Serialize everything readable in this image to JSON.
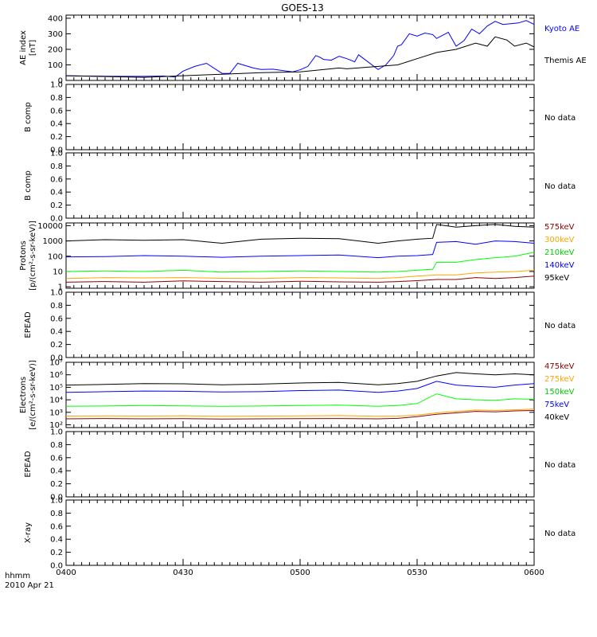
{
  "title": "GOES-13",
  "footer": {
    "time_label": "hhmm",
    "date_label": "2010 Apr 21"
  },
  "x_ticks": [
    "0400",
    "0430",
    "0500",
    "0530",
    "0600"
  ],
  "panels": [
    {
      "ylabel": [
        "AE index",
        "[nT]"
      ],
      "type": "line",
      "yscale": "linear",
      "ylim": [
        0,
        420
      ],
      "ytick_values": [
        0,
        100,
        200,
        300,
        400
      ],
      "ytick_labels": [
        "0",
        "100",
        "200",
        "300",
        "400"
      ],
      "series": [
        {
          "name": "Kyoto AE",
          "color": "#0000ff",
          "x": [
            0,
            5,
            10,
            15,
            20,
            25,
            28,
            30,
            33,
            36,
            40,
            42,
            44,
            48,
            50,
            53,
            58,
            60,
            62,
            64,
            65,
            66,
            68,
            70,
            72,
            74,
            75,
            80,
            82,
            84,
            85,
            86,
            88,
            90,
            92,
            94,
            95,
            98,
            100,
            102,
            104,
            106,
            108,
            110,
            112,
            114,
            116,
            118,
            120
          ],
          "y": [
            30,
            28,
            27,
            26,
            26,
            28,
            22,
            60,
            90,
            110,
            45,
            45,
            110,
            80,
            70,
            72,
            55,
            68,
            90,
            160,
            150,
            135,
            130,
            155,
            140,
            120,
            165,
            70,
            100,
            160,
            220,
            230,
            300,
            285,
            305,
            295,
            270,
            310,
            220,
            255,
            330,
            300,
            350,
            380,
            360,
            365,
            370,
            385,
            360
          ]
        },
        {
          "name": "Themis AE",
          "color": "#000000",
          "x": [
            0,
            10,
            20,
            30,
            40,
            50,
            60,
            70,
            72,
            80,
            85,
            90,
            95,
            100,
            105,
            108,
            110,
            113,
            115,
            118,
            120
          ],
          "y": [
            30,
            25,
            20,
            30,
            40,
            50,
            55,
            80,
            75,
            90,
            100,
            140,
            180,
            200,
            240,
            220,
            280,
            260,
            220,
            240,
            215
          ]
        }
      ],
      "legend": [
        {
          "label": "Kyoto AE",
          "color": "#0000ff"
        },
        {
          "label": "Themis AE",
          "color": "#000000"
        }
      ]
    },
    {
      "ylabel": [
        "B comp"
      ],
      "type": "empty",
      "yscale": "linear",
      "ylim": [
        0,
        1
      ],
      "ytick_values": [
        0,
        0.2,
        0.4,
        0.6,
        0.8,
        1.0
      ],
      "ytick_labels": [
        "0.0",
        "0.2",
        "0.4",
        "0.6",
        "0.8",
        "1.0"
      ],
      "series": [],
      "legend": [],
      "note": "No data"
    },
    {
      "ylabel": [
        "B comp"
      ],
      "type": "empty",
      "yscale": "linear",
      "ylim": [
        0,
        1
      ],
      "ytick_values": [
        0,
        0.2,
        0.4,
        0.6,
        0.8,
        1.0
      ],
      "ytick_labels": [
        "0.0",
        "0.2",
        "0.4",
        "0.6",
        "0.8",
        "1.0"
      ],
      "series": [],
      "legend": [],
      "note": "No data"
    },
    {
      "ylabel": [
        "Protons",
        "[p/(cm²-s-sr-keV)]"
      ],
      "type": "line",
      "yscale": "log",
      "ylim": [
        0.8,
        15000
      ],
      "ytick_values": [
        1,
        10,
        100,
        1000,
        10000
      ],
      "ytick_labels": [
        "1",
        "10",
        "100",
        "1000",
        "10000"
      ],
      "series": [
        {
          "name": "575keV",
          "color": "#8b0000",
          "x": [
            0,
            10,
            20,
            30,
            40,
            50,
            60,
            70,
            80,
            85,
            90,
            95,
            100,
            105,
            110,
            115,
            120
          ],
          "y": [
            2,
            2.2,
            2,
            2.4,
            2.2,
            2,
            2.3,
            2.1,
            2,
            2.2,
            2.5,
            3,
            3,
            4,
            3.5,
            4,
            5
          ]
        },
        {
          "name": "300keV",
          "color": "#ffa500",
          "x": [
            0,
            10,
            20,
            30,
            40,
            50,
            60,
            70,
            80,
            85,
            90,
            95,
            100,
            105,
            110,
            115,
            120
          ],
          "y": [
            3.5,
            4,
            3.8,
            4,
            3.6,
            3.5,
            4,
            3.8,
            3.5,
            4,
            5,
            6,
            6,
            8,
            9,
            10,
            12
          ]
        },
        {
          "name": "210keV",
          "color": "#00ff00",
          "x": [
            0,
            10,
            20,
            30,
            40,
            50,
            60,
            70,
            80,
            85,
            90,
            94,
            95,
            100,
            105,
            110,
            115,
            120
          ],
          "y": [
            10,
            11,
            10,
            12,
            9,
            10,
            11,
            10,
            9,
            10,
            12,
            14,
            40,
            40,
            60,
            80,
            100,
            180
          ]
        },
        {
          "name": "140keV",
          "color": "#0000ff",
          "x": [
            0,
            10,
            20,
            30,
            40,
            50,
            60,
            70,
            80,
            85,
            90,
            94,
            95,
            100,
            105,
            110,
            115,
            120
          ],
          "y": [
            90,
            95,
            110,
            100,
            85,
            100,
            110,
            120,
            80,
            100,
            110,
            130,
            800,
            900,
            600,
            1000,
            900,
            700
          ]
        },
        {
          "name": "95keV",
          "color": "#000000",
          "x": [
            0,
            10,
            20,
            30,
            40,
            50,
            60,
            70,
            80,
            85,
            90,
            94,
            95,
            100,
            105,
            110,
            115,
            120
          ],
          "y": [
            1000,
            1200,
            1100,
            1200,
            700,
            1300,
            1500,
            1400,
            700,
            1000,
            1300,
            1500,
            12000,
            8000,
            10000,
            12000,
            9000,
            8000
          ]
        }
      ],
      "legend": [
        {
          "label": "575keV",
          "color": "#8b0000"
        },
        {
          "label": "300keV",
          "color": "#ffa500"
        },
        {
          "label": "210keV",
          "color": "#00cc00"
        },
        {
          "label": "140keV",
          "color": "#0000ff"
        },
        {
          "label": "95keV",
          "color": "#000000"
        }
      ]
    },
    {
      "ylabel": [
        "EPEAD"
      ],
      "type": "empty",
      "yscale": "linear",
      "ylim": [
        0,
        1
      ],
      "ytick_values": [
        0,
        0.2,
        0.4,
        0.6,
        0.8,
        1.0
      ],
      "ytick_labels": [
        "0.0",
        "0.2",
        "0.4",
        "0.6",
        "0.8",
        "1.0"
      ],
      "series": [],
      "legend": [],
      "note": "No data"
    },
    {
      "ylabel": [
        "Electrons",
        "[e/(cm²-s-sr-keV)]"
      ],
      "type": "line",
      "yscale": "log",
      "ylim": [
        60,
        10000000
      ],
      "ytick_values": [
        100,
        1000,
        10000,
        100000,
        1000000,
        10000000
      ],
      "ytick_labels": [
        "10²",
        "10³",
        "10⁴",
        "10⁵",
        "10⁶",
        "10⁷"
      ],
      "series": [
        {
          "name": "475keV",
          "color": "#8b0000",
          "x": [
            0,
            10,
            20,
            30,
            40,
            50,
            60,
            70,
            80,
            85,
            90,
            95,
            100,
            105,
            110,
            115,
            120
          ],
          "y": [
            300,
            320,
            300,
            310,
            290,
            300,
            310,
            320,
            300,
            330,
            450,
            700,
            900,
            1200,
            1100,
            1300,
            1400
          ]
        },
        {
          "name": "275keV",
          "color": "#ffa500",
          "x": [
            0,
            10,
            20,
            30,
            40,
            50,
            60,
            70,
            80,
            85,
            90,
            95,
            100,
            105,
            110,
            115,
            120
          ],
          "y": [
            500,
            520,
            500,
            530,
            480,
            500,
            520,
            550,
            480,
            500,
            600,
            900,
            1200,
            1500,
            1400,
            1600,
            1800
          ]
        },
        {
          "name": "150keV",
          "color": "#00ff00",
          "x": [
            0,
            10,
            20,
            30,
            40,
            50,
            60,
            70,
            80,
            85,
            90,
            95,
            100,
            105,
            110,
            115,
            120
          ],
          "y": [
            3000,
            3200,
            3500,
            3300,
            3000,
            3200,
            3500,
            3800,
            3000,
            3500,
            5000,
            30000,
            12000,
            10000,
            9000,
            12000,
            11000
          ]
        },
        {
          "name": "75keV",
          "color": "#0000ff",
          "x": [
            0,
            10,
            20,
            30,
            40,
            50,
            60,
            70,
            80,
            85,
            90,
            95,
            100,
            105,
            110,
            115,
            120
          ],
          "y": [
            40000,
            45000,
            50000,
            48000,
            42000,
            45000,
            55000,
            60000,
            40000,
            50000,
            80000,
            300000,
            150000,
            120000,
            100000,
            150000,
            200000
          ]
        },
        {
          "name": "40keV",
          "color": "#000000",
          "x": [
            0,
            10,
            20,
            30,
            40,
            50,
            60,
            70,
            80,
            85,
            90,
            95,
            100,
            105,
            110,
            115,
            120
          ],
          "y": [
            150000,
            170000,
            200000,
            190000,
            160000,
            180000,
            220000,
            250000,
            160000,
            200000,
            300000,
            800000,
            1500000,
            1200000,
            1000000,
            1200000,
            1000000
          ]
        }
      ],
      "legend": [
        {
          "label": "475keV",
          "color": "#8b0000"
        },
        {
          "label": "275keV",
          "color": "#ffa500"
        },
        {
          "label": "150keV",
          "color": "#00cc00"
        },
        {
          "label": "75keV",
          "color": "#0000ff"
        },
        {
          "label": "40keV",
          "color": "#000000"
        }
      ]
    },
    {
      "ylabel": [
        "EPEAD"
      ],
      "type": "empty",
      "yscale": "linear",
      "ylim": [
        0,
        1
      ],
      "ytick_values": [
        0,
        0.2,
        0.4,
        0.6,
        0.8,
        1.0
      ],
      "ytick_labels": [
        "0.0",
        "0.2",
        "0.4",
        "0.6",
        "0.8",
        "1.0"
      ],
      "series": [],
      "legend": [],
      "note": "No data"
    },
    {
      "ylabel": [
        "X-ray"
      ],
      "type": "empty",
      "yscale": "linear",
      "ylim": [
        0,
        1
      ],
      "ytick_values": [
        0,
        0.2,
        0.4,
        0.6,
        0.8,
        1.0
      ],
      "ytick_labels": [
        "0.0",
        "0.2",
        "0.4",
        "0.6",
        "0.8",
        "1.0"
      ],
      "series": [],
      "legend": [],
      "note": "No data"
    }
  ]
}
